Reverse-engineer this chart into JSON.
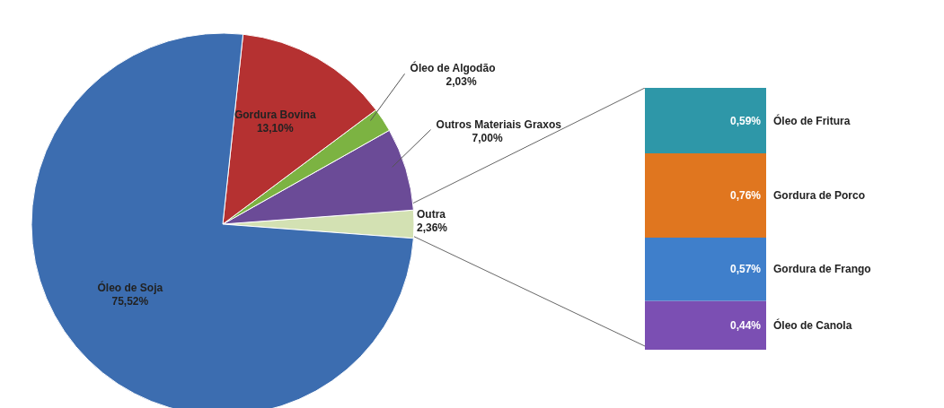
{
  "chart_data": [
    {
      "type": "pie",
      "categories": [
        "Outra",
        "Outros Materiais Graxos",
        "Óleo de Algodão",
        "Gordura Bovina",
        "Óleo de Soja"
      ],
      "values": [
        2.36,
        7.0,
        2.03,
        13.1,
        75.52
      ],
      "colors": [
        "#d3e1b3",
        "#6b4b97",
        "#7cb342",
        "#b53131",
        "#3c6db0"
      ],
      "value_labels": [
        "2,36%",
        "7,00%",
        "2,03%",
        "13,10%",
        "75,52%"
      ]
    },
    {
      "type": "bar",
      "stacked": true,
      "categories": [
        null
      ],
      "series": [
        {
          "name": "Óleo de Canola",
          "color": "#7b4fb3",
          "values": [
            0.44
          ],
          "value_labels": [
            "0,44%"
          ]
        },
        {
          "name": "Gordura de Frango",
          "color": "#3f7fcb",
          "values": [
            0.57
          ],
          "value_labels": [
            "0,57%"
          ]
        },
        {
          "name": "Gordura de Porco",
          "color": "#e0761f",
          "values": [
            0.76
          ],
          "value_labels": [
            "0,76%"
          ]
        },
        {
          "name": "Óleo de Fritura",
          "color": "#2e97a8",
          "values": [
            0.59
          ],
          "value_labels": [
            "0,59%"
          ]
        }
      ]
    }
  ]
}
